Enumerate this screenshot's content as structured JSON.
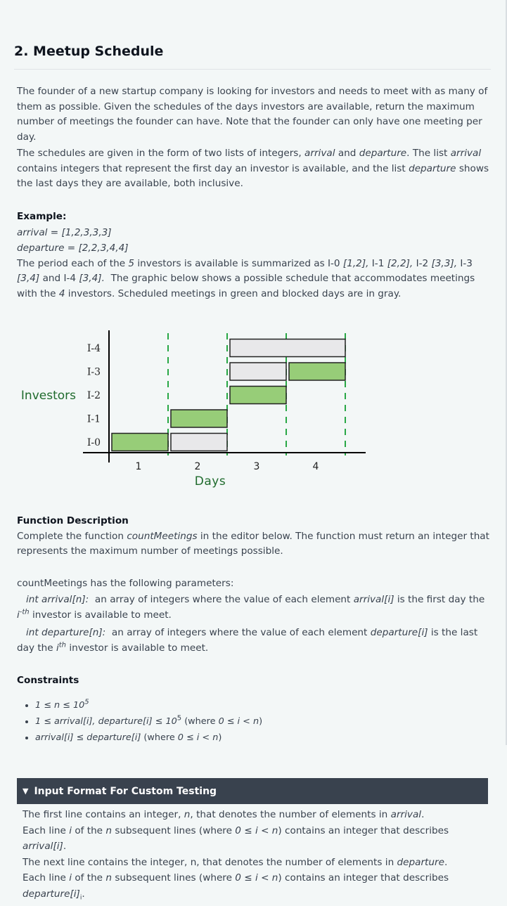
{
  "title": "2. Meetup Schedule",
  "intro_p1": "The founder of a new startup company is looking for investors and needs to meet with as many of them as possible. Given the schedules of the days investors are available, return the maximum number of meetings the founder can have. Note that the founder can only have one meeting per day.",
  "intro_p2": {
    "a": "The schedules are given in the form of two lists of integers,",
    "arrival": "arrival",
    "and": "and",
    "departure": "departure",
    "b": ". The list",
    "arrival2": "arrival",
    "c": "contains integers that represent the first day an investor is available, and the list",
    "departure2": "departure",
    "d": "shows the last days they are available, both inclusive."
  },
  "example": {
    "heading": "Example:",
    "arrival_line": "arrival = [1,2,3,3,3]",
    "departure_line": "departure = [2,2,3,4,4]",
    "t1": "The period each of the",
    "n5": "5",
    "t2": "investors is available is summarized as I-0",
    "r0": "[1,2],",
    "i1": "I-1",
    "r1": "[2,2],",
    "i2": "I-2",
    "r2": "[3,3],",
    "i3": "I-3",
    "r3": "[3,4]",
    "t3": "and I-4",
    "r4": "[3,4].",
    "t4": "The graphic below shows a possible schedule that accommodates meetings with the",
    "n4": "4",
    "t5": "investors. Scheduled meetings in green and blocked days are in gray."
  },
  "chart_data": {
    "type": "gantt",
    "y_axis_label": "Investors",
    "x_axis_label": "Days",
    "investors": [
      "I-0",
      "I-1",
      "I-2",
      "I-3",
      "I-4"
    ],
    "days": [
      "1",
      "2",
      "3",
      "4"
    ],
    "bars": [
      {
        "investor": "I-0",
        "start": 1,
        "end": 2,
        "status": "scheduled"
      },
      {
        "investor": "I-0",
        "start": 2,
        "end": 3,
        "status": "blocked"
      },
      {
        "investor": "I-1",
        "start": 2,
        "end": 3,
        "status": "scheduled"
      },
      {
        "investor": "I-2",
        "start": 3,
        "end": 4,
        "status": "scheduled"
      },
      {
        "investor": "I-3",
        "start": 3,
        "end": 4,
        "status": "blocked"
      },
      {
        "investor": "I-3",
        "start": 4,
        "end": 5,
        "status": "scheduled"
      },
      {
        "investor": "I-4",
        "start": 3,
        "end": 5,
        "status": "blocked"
      }
    ],
    "colors": {
      "scheduled": "#97cd78",
      "blocked": "#e8e8ea",
      "divider": "#28a745",
      "label": "#1f6b2d"
    }
  },
  "function_description": {
    "heading": "Function Description",
    "t1": "Complete the function",
    "fn": "countMeetings",
    "t2": "in the editor below. The function must return an integer that represents the maximum number of meetings possible."
  },
  "parameters": {
    "intro": "countMeetings has the following parameters:",
    "p1_name": "int arrival[n]:",
    "p1_a": "an array of integers where the value of each element",
    "p1_el": "arrival[i]",
    "p1_b": "is the first day the",
    "p1_i": "i",
    "p1_sup": "-th",
    "p1_c": "investor is available to meet.",
    "p2_name": "int departure[n]:",
    "p2_a": "an array of integers where the value of each element",
    "p2_el": "departure[i]",
    "p2_b": "is the last day the",
    "p2_i": "i",
    "p2_sup": "th",
    "p2_c": "investor is available to meet."
  },
  "constraints": {
    "heading": "Constraints",
    "c1_a": "1 ≤ n ≤ 10",
    "c1_sup": "5",
    "c2_a": "1 ≤ arrival[i], departure[i] ≤ 10",
    "c2_sup": "5",
    "c2_w": "(where",
    "c2_r": "0 ≤ i < n",
    "c2_e": ")",
    "c3_a": "arrival[i]  ≤ departure[i]",
    "c3_w": "(where",
    "c3_r": "0 ≤ i < n",
    "c3_e": ")"
  },
  "custom_testing": {
    "header": "Input Format For Custom Testing",
    "l1_a": "The first line contains an integer,",
    "l1_n": "n",
    "l1_b": ", that denotes the number of elements in",
    "l1_arr": "arrival",
    "l1_c": ".",
    "l2_a": "Each line",
    "l2_i": "i",
    "l2_b": "of the",
    "l2_n": "n",
    "l2_c": "subsequent lines (where",
    "l2_r": "0 ≤ i < n",
    "l2_d": ") contains an integer that describes",
    "l2_el": "arrival[i]",
    "l2_e": ".",
    "l3": "The next line contains the integer, n, that denotes the number of elements in",
    "l3_dep": "departure",
    "l3_e": ".",
    "l4_a": "Each line",
    "l4_i": "i",
    "l4_b": "of the",
    "l4_n": "n",
    "l4_c": "subsequent lines (where",
    "l4_r": "0 ≤ i < n",
    "l4_d": ") contains an integer that describes",
    "l4_el": "departure[i]",
    "l4_sub": "i",
    "l4_e": "."
  }
}
